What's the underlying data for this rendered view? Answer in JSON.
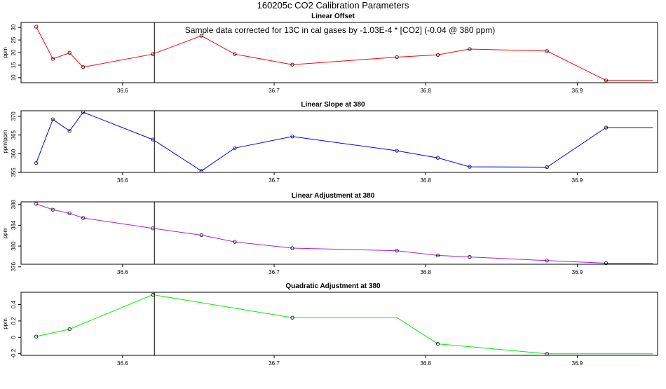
{
  "figure": {
    "title": "160205c   CO2 Calibration Parameters",
    "note": "Sample data corrected for 13C in cal gases by -1.03E-4 * [CO2] (-0.04 @ 380 ppm)"
  },
  "chart_data": [
    {
      "type": "line",
      "title": "Linear Offset",
      "xlabel": "",
      "ylabel": "ppm",
      "color": "#ff0000",
      "xlim": [
        36.533,
        36.953
      ],
      "ylim": [
        8,
        32
      ],
      "xticks": [
        36.6,
        36.7,
        36.8,
        36.9
      ],
      "yticks": [
        10,
        15,
        20,
        25,
        30
      ],
      "vline_x": 36.621,
      "series": [
        {
          "points": [
            [
              36.543,
              30.3
            ],
            [
              36.554,
              17.5
            ],
            [
              36.565,
              19.9
            ],
            [
              36.574,
              14.2
            ],
            [
              36.62,
              19.4
            ],
            [
              36.652,
              26.7
            ],
            [
              36.674,
              19.4
            ],
            [
              36.712,
              15.2
            ],
            [
              36.781,
              18.2
            ],
            [
              36.808,
              19.1
            ],
            [
              36.829,
              21.4
            ],
            [
              36.88,
              20.6
            ],
            [
              36.919,
              8.9
            ],
            [
              36.95,
              8.9
            ]
          ],
          "markers": [
            0,
            1,
            2,
            3,
            4,
            5,
            6,
            7,
            8,
            9,
            10,
            11,
            12
          ]
        }
      ]
    },
    {
      "type": "line",
      "title": "Linear Slope at 380",
      "xlabel": "",
      "ylabel": "ppm/ppm",
      "color": "#0000ff",
      "xlim": [
        36.533,
        36.953
      ],
      "ylim": [
        355,
        371.5
      ],
      "xticks": [
        36.6,
        36.7,
        36.8,
        36.9
      ],
      "yticks": [
        355,
        360,
        365,
        370
      ],
      "vline_x": 36.621,
      "series": [
        {
          "points": [
            [
              36.543,
              357.5
            ],
            [
              36.554,
              369.2
            ],
            [
              36.565,
              366.1
            ],
            [
              36.574,
              371.1
            ],
            [
              36.62,
              363.8
            ],
            [
              36.652,
              355.4
            ],
            [
              36.674,
              361.5
            ],
            [
              36.712,
              364.6
            ],
            [
              36.781,
              360.8
            ],
            [
              36.808,
              358.9
            ],
            [
              36.829,
              356.5
            ],
            [
              36.88,
              356.4
            ],
            [
              36.919,
              367.0
            ],
            [
              36.95,
              367.0
            ]
          ],
          "markers": [
            0,
            1,
            2,
            3,
            4,
            5,
            6,
            7,
            8,
            9,
            10,
            11,
            12
          ]
        }
      ]
    },
    {
      "type": "line",
      "title": "Linear Adjustment at 380",
      "xlabel": "",
      "ylabel": "ppm",
      "color": "#a020f0",
      "xlim": [
        36.533,
        36.953
      ],
      "ylim": [
        376.5,
        388.5
      ],
      "xticks": [
        36.6,
        36.7,
        36.8,
        36.9
      ],
      "yticks": [
        376,
        380,
        384,
        388
      ],
      "vline_x": 36.621,
      "series": [
        {
          "points": [
            [
              36.543,
              388.1
            ],
            [
              36.554,
              387.0
            ],
            [
              36.565,
              386.3
            ],
            [
              36.574,
              385.4
            ],
            [
              36.62,
              383.4
            ],
            [
              36.652,
              382.1
            ],
            [
              36.674,
              380.8
            ],
            [
              36.712,
              379.6
            ],
            [
              36.781,
              379.1
            ],
            [
              36.808,
              378.2
            ],
            [
              36.829,
              377.9
            ],
            [
              36.88,
              377.2
            ],
            [
              36.919,
              376.7
            ],
            [
              36.95,
              376.7
            ]
          ],
          "markers": [
            0,
            1,
            2,
            3,
            4,
            5,
            6,
            7,
            8,
            9,
            10,
            11,
            12
          ]
        }
      ]
    },
    {
      "type": "line",
      "title": "Quadratic Adjustment at 380",
      "xlabel": "",
      "ylabel": "ppm",
      "color": "#00ee00",
      "xlim": [
        36.533,
        36.953
      ],
      "ylim": [
        -0.22,
        0.55
      ],
      "xticks": [
        36.6,
        36.7,
        36.8,
        36.9
      ],
      "yticks": [
        -0.2,
        0.0,
        0.2,
        0.4
      ],
      "vline_x": 36.621,
      "series": [
        {
          "points": [
            [
              36.543,
              0.01
            ],
            [
              36.565,
              0.1
            ],
            [
              36.62,
              0.52
            ],
            [
              36.712,
              0.24
            ],
            [
              36.781,
              0.24
            ],
            [
              36.808,
              -0.08
            ],
            [
              36.88,
              -0.2
            ],
            [
              36.95,
              -0.2
            ]
          ],
          "markers": [
            0,
            1,
            2,
            3,
            5,
            6
          ]
        }
      ]
    }
  ]
}
